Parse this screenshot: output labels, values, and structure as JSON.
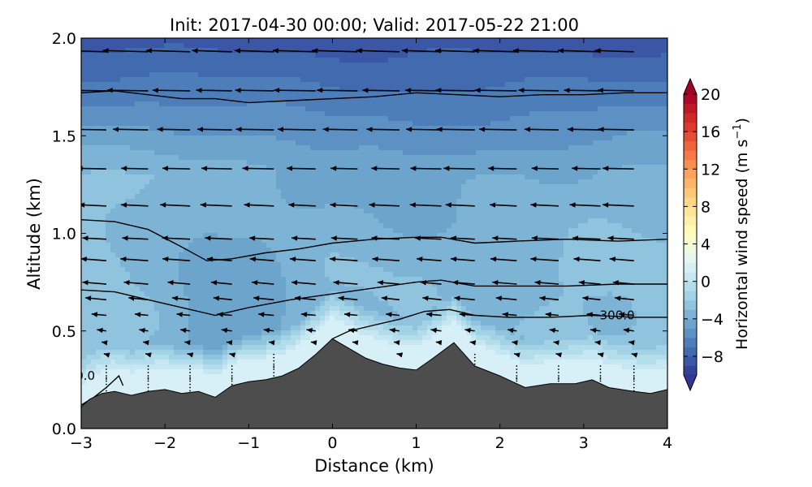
{
  "chart_data": {
    "type": "heatmap",
    "subtype": "vertical cross-section with wind vectors and contours",
    "title": "Init: 2017-04-30 00:00; Valid: 2017-05-22 21:00",
    "xlabel": "Distance (km)",
    "ylabel": "Altitude (km)",
    "xlim": [
      -3,
      4
    ],
    "ylim": [
      0,
      2
    ],
    "xticks": [
      "−3",
      "−2",
      "−1",
      "0",
      "1",
      "2",
      "3",
      "4"
    ],
    "yticks": [
      "0.0",
      "0.5",
      "1.0",
      "1.5",
      "2.0"
    ],
    "colorbar": {
      "label": "Horizontal wind speed (m s",
      "label_sup": "−1",
      "label_close": ")",
      "range": [
        -10,
        20
      ],
      "ticks": [
        "−8",
        "−4",
        "0",
        "4",
        "8",
        "12",
        "16",
        "20"
      ],
      "colormap": "RdYlBu_r",
      "extend": "both"
    },
    "terrain": {
      "color": "#4d4d4d",
      "x": [
        -3.0,
        -2.9,
        -2.75,
        -2.6,
        -2.5,
        -2.4,
        -2.2,
        -2.0,
        -1.8,
        -1.6,
        -1.4,
        -1.2,
        -1.0,
        -0.8,
        -0.6,
        -0.4,
        -0.2,
        0.0,
        0.2,
        0.4,
        0.6,
        0.8,
        1.0,
        1.2,
        1.45,
        1.7,
        2.0,
        2.3,
        2.6,
        2.9,
        3.1,
        3.3,
        3.6,
        3.8,
        4.0
      ],
      "y": [
        0.11,
        0.15,
        0.18,
        0.19,
        0.18,
        0.17,
        0.19,
        0.2,
        0.18,
        0.19,
        0.16,
        0.22,
        0.24,
        0.25,
        0.27,
        0.31,
        0.38,
        0.46,
        0.41,
        0.36,
        0.33,
        0.31,
        0.3,
        0.36,
        0.44,
        0.32,
        0.27,
        0.21,
        0.23,
        0.23,
        0.25,
        0.21,
        0.19,
        0.18,
        0.2
      ]
    },
    "wind_speed_field": {
      "description": "Horizontal wind speed in m/s; negative values = flow toward -x",
      "surface_layer_value": 1.5,
      "upper_value": -8.5,
      "lower_value_by_x": {
        "x": [
          -3,
          -2.5,
          -2,
          -1.5,
          -1,
          -0.5,
          0,
          0.5,
          1,
          1.5,
          2,
          2.5,
          3,
          3.5,
          4
        ],
        "v": [
          -2.5,
          -2.8,
          -3.5,
          -4.8,
          -4.5,
          -3.8,
          -3.2,
          -3.0,
          -3.2,
          -3.5,
          -3.4,
          -3.0,
          -2.8,
          -2.7,
          -2.6
        ]
      },
      "mid_value_by_x": {
        "x": [
          -3,
          -2,
          -1,
          0,
          1,
          2,
          3,
          4
        ],
        "v": [
          -3.0,
          -3.2,
          -3.5,
          -4.2,
          -4.6,
          -4.2,
          -3.8,
          -3.6
        ]
      }
    },
    "contours": [
      {
        "x": [
          -3.0,
          -2.6,
          -2.2,
          -1.8,
          -1.4,
          -1.0,
          -0.5,
          0.0,
          0.5,
          1.0,
          1.5,
          2.0,
          2.5,
          3.0,
          3.5,
          4.0
        ],
        "y": [
          1.72,
          1.73,
          1.71,
          1.69,
          1.69,
          1.67,
          1.68,
          1.69,
          1.7,
          1.72,
          1.71,
          1.7,
          1.71,
          1.71,
          1.72,
          1.72
        ]
      },
      {
        "x": [
          -3.0,
          -2.6,
          -2.2,
          -1.8,
          -1.5,
          -1.2,
          -0.8,
          -0.4,
          0.0,
          0.5,
          1.0,
          1.3,
          1.7,
          2.2,
          2.8,
          3.4,
          4.0
        ],
        "y": [
          1.07,
          1.06,
          1.02,
          0.93,
          0.86,
          0.87,
          0.9,
          0.92,
          0.95,
          0.97,
          0.98,
          0.98,
          0.95,
          0.96,
          0.97,
          0.96,
          0.97
        ]
      },
      {
        "x": [
          -3.0,
          -2.6,
          -2.2,
          -1.8,
          -1.4,
          -1.0,
          -0.5,
          0.0,
          0.5,
          1.0,
          1.3,
          1.7,
          2.2,
          2.8,
          3.4,
          4.0
        ],
        "y": [
          0.71,
          0.7,
          0.66,
          0.62,
          0.58,
          0.62,
          0.66,
          0.69,
          0.72,
          0.75,
          0.76,
          0.73,
          0.73,
          0.73,
          0.74,
          0.74
        ]
      },
      {
        "x": [
          -0.1,
          0.0,
          0.2,
          0.5,
          0.8,
          1.1,
          1.4,
          1.7,
          2.1,
          2.6,
          3.1,
          3.6,
          4.0
        ],
        "y": [
          0.41,
          0.46,
          0.5,
          0.53,
          0.56,
          0.6,
          0.61,
          0.58,
          0.57,
          0.57,
          0.58,
          0.57,
          0.57
        ]
      },
      {
        "x": [
          -3.0,
          -2.85,
          -2.7,
          -2.55,
          -2.5
        ],
        "y": [
          0.12,
          0.16,
          0.21,
          0.27,
          0.22
        ]
      }
    ],
    "contour_labels": [
      {
        "text": "300.0",
        "x": 3.4,
        "y": 0.58
      },
      {
        "text": "0.0",
        "x": -2.95,
        "y": 0.27
      }
    ],
    "wind_vectors": {
      "columns_x": [
        -2.7,
        -2.2,
        -1.7,
        -1.2,
        -0.7,
        -0.2,
        0.3,
        0.8,
        1.3,
        1.7,
        2.2,
        2.7,
        3.2,
        3.6
      ],
      "rows_y": [
        1.93,
        1.73,
        1.53,
        1.33,
        1.14,
        0.97,
        0.86,
        0.74,
        0.66,
        0.58,
        0.5,
        0.44,
        0.38,
        0.32,
        0.26
      ],
      "u_by_row": [
        -6.5,
        -6.0,
        -5.5,
        -4.5,
        -4.5,
        -4.0,
        -4.0,
        -3.5,
        -3.0,
        -2.2,
        -1.5,
        -0.8,
        -0.4,
        -0.2,
        -0.1
      ],
      "w_by_row": [
        0.2,
        0.1,
        0.1,
        0.1,
        0.2,
        0.2,
        0.3,
        0.3,
        0.3,
        0.2,
        0.2,
        0.1,
        0.1,
        0.0,
        0.0
      ]
    }
  }
}
